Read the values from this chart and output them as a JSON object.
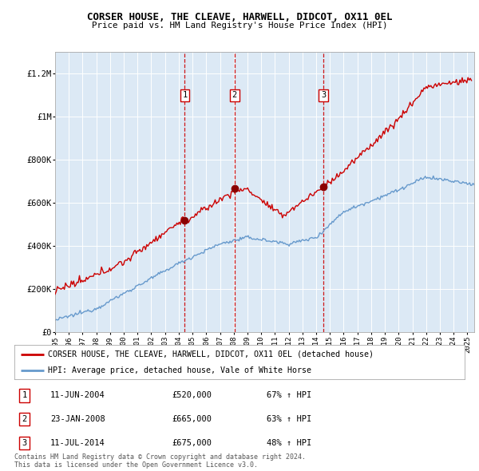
{
  "title": "CORSER HOUSE, THE CLEAVE, HARWELL, DIDCOT, OX11 0EL",
  "subtitle": "Price paid vs. HM Land Registry's House Price Index (HPI)",
  "plot_bg_color": "#dce9f5",
  "ylim": [
    0,
    1300000
  ],
  "yticks": [
    0,
    200000,
    400000,
    600000,
    800000,
    1000000,
    1200000
  ],
  "ytick_labels": [
    "£0",
    "£200K",
    "£400K",
    "£600K",
    "£800K",
    "£1M",
    "£1.2M"
  ],
  "sale_dates_num": [
    2004.44,
    2008.06,
    2014.53
  ],
  "sale_prices": [
    520000,
    665000,
    675000
  ],
  "sale_labels": [
    "1",
    "2",
    "3"
  ],
  "sale_info": [
    {
      "label": "1",
      "date": "11-JUN-2004",
      "price": "£520,000",
      "hpi": "67% ↑ HPI"
    },
    {
      "label": "2",
      "date": "23-JAN-2008",
      "price": "£665,000",
      "hpi": "63% ↑ HPI"
    },
    {
      "label": "3",
      "date": "11-JUL-2014",
      "price": "£675,000",
      "hpi": "48% ↑ HPI"
    }
  ],
  "legend_house": "CORSER HOUSE, THE CLEAVE, HARWELL, DIDCOT, OX11 0EL (detached house)",
  "legend_hpi": "HPI: Average price, detached house, Vale of White Horse",
  "footer": "Contains HM Land Registry data © Crown copyright and database right 2024.\nThis data is licensed under the Open Government Licence v3.0.",
  "house_line_color": "#cc0000",
  "hpi_line_color": "#6699cc",
  "sale_marker_color": "#8b0000",
  "dashed_line_color": "#cc0000",
  "xmin": 1995.0,
  "xmax": 2025.5
}
